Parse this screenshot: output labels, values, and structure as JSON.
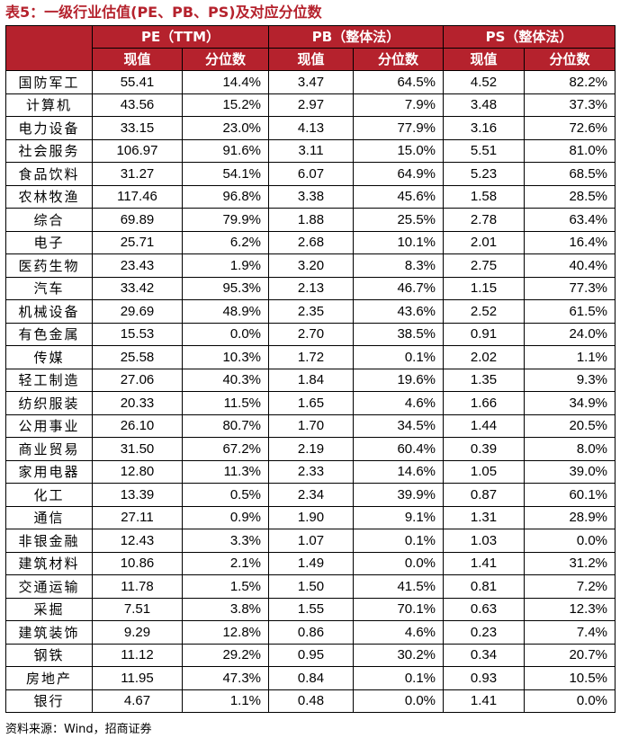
{
  "title": "表5：一级行业估值(PE、PB、PS)及对应分位数",
  "groups": [
    "PE（TTM）",
    "PB（整体法）",
    "PS（整体法）"
  ],
  "subheaders": [
    "现值",
    "分位数",
    "现值",
    "分位数",
    "现值",
    "分位数"
  ],
  "rows": [
    {
      "name": "国防军工",
      "pe": "55.41",
      "pe_pct": "14.4%",
      "pb": "3.47",
      "pb_pct": "64.5%",
      "ps": "4.52",
      "ps_pct": "82.2%"
    },
    {
      "name": "计算机",
      "pe": "43.56",
      "pe_pct": "15.2%",
      "pb": "2.97",
      "pb_pct": "7.9%",
      "ps": "3.48",
      "ps_pct": "37.3%"
    },
    {
      "name": "电力设备",
      "pe": "33.15",
      "pe_pct": "23.0%",
      "pb": "4.13",
      "pb_pct": "77.9%",
      "ps": "3.16",
      "ps_pct": "72.6%"
    },
    {
      "name": "社会服务",
      "pe": "106.97",
      "pe_pct": "91.6%",
      "pb": "3.11",
      "pb_pct": "15.0%",
      "ps": "5.51",
      "ps_pct": "81.0%"
    },
    {
      "name": "食品饮料",
      "pe": "31.27",
      "pe_pct": "54.1%",
      "pb": "6.07",
      "pb_pct": "64.9%",
      "ps": "5.23",
      "ps_pct": "68.5%"
    },
    {
      "name": "农林牧渔",
      "pe": "117.46",
      "pe_pct": "96.8%",
      "pb": "3.38",
      "pb_pct": "45.6%",
      "ps": "1.58",
      "ps_pct": "28.5%"
    },
    {
      "name": "综合",
      "pe": "69.89",
      "pe_pct": "79.9%",
      "pb": "1.88",
      "pb_pct": "25.5%",
      "ps": "2.78",
      "ps_pct": "63.4%"
    },
    {
      "name": "电子",
      "pe": "25.71",
      "pe_pct": "6.2%",
      "pb": "2.68",
      "pb_pct": "10.1%",
      "ps": "2.01",
      "ps_pct": "16.4%"
    },
    {
      "name": "医药生物",
      "pe": "23.43",
      "pe_pct": "1.9%",
      "pb": "3.20",
      "pb_pct": "8.3%",
      "ps": "2.75",
      "ps_pct": "40.4%"
    },
    {
      "name": "汽车",
      "pe": "33.42",
      "pe_pct": "95.3%",
      "pb": "2.13",
      "pb_pct": "46.7%",
      "ps": "1.15",
      "ps_pct": "77.3%"
    },
    {
      "name": "机械设备",
      "pe": "29.69",
      "pe_pct": "48.9%",
      "pb": "2.35",
      "pb_pct": "43.6%",
      "ps": "2.52",
      "ps_pct": "61.5%"
    },
    {
      "name": "有色金属",
      "pe": "15.53",
      "pe_pct": "0.0%",
      "pb": "2.70",
      "pb_pct": "38.5%",
      "ps": "0.91",
      "ps_pct": "24.0%"
    },
    {
      "name": "传媒",
      "pe": "25.58",
      "pe_pct": "10.3%",
      "pb": "1.72",
      "pb_pct": "0.1%",
      "ps": "2.02",
      "ps_pct": "1.1%"
    },
    {
      "name": "轻工制造",
      "pe": "27.06",
      "pe_pct": "40.3%",
      "pb": "1.84",
      "pb_pct": "19.6%",
      "ps": "1.35",
      "ps_pct": "9.3%"
    },
    {
      "name": "纺织服装",
      "pe": "20.33",
      "pe_pct": "11.5%",
      "pb": "1.65",
      "pb_pct": "4.6%",
      "ps": "1.66",
      "ps_pct": "34.9%"
    },
    {
      "name": "公用事业",
      "pe": "26.10",
      "pe_pct": "80.7%",
      "pb": "1.70",
      "pb_pct": "34.5%",
      "ps": "1.44",
      "ps_pct": "20.5%"
    },
    {
      "name": "商业贸易",
      "pe": "31.50",
      "pe_pct": "67.2%",
      "pb": "2.19",
      "pb_pct": "60.4%",
      "ps": "0.39",
      "ps_pct": "8.0%"
    },
    {
      "name": "家用电器",
      "pe": "12.80",
      "pe_pct": "11.3%",
      "pb": "2.33",
      "pb_pct": "14.6%",
      "ps": "1.05",
      "ps_pct": "39.0%"
    },
    {
      "name": "化工",
      "pe": "13.39",
      "pe_pct": "0.5%",
      "pb": "2.34",
      "pb_pct": "39.9%",
      "ps": "0.87",
      "ps_pct": "60.1%"
    },
    {
      "name": "通信",
      "pe": "27.11",
      "pe_pct": "0.9%",
      "pb": "1.90",
      "pb_pct": "9.1%",
      "ps": "1.31",
      "ps_pct": "28.9%"
    },
    {
      "name": "非银金融",
      "pe": "12.43",
      "pe_pct": "3.3%",
      "pb": "1.07",
      "pb_pct": "0.1%",
      "ps": "1.03",
      "ps_pct": "0.0%"
    },
    {
      "name": "建筑材料",
      "pe": "10.86",
      "pe_pct": "2.1%",
      "pb": "1.49",
      "pb_pct": "0.0%",
      "ps": "1.41",
      "ps_pct": "31.2%"
    },
    {
      "name": "交通运输",
      "pe": "11.78",
      "pe_pct": "1.5%",
      "pb": "1.50",
      "pb_pct": "41.5%",
      "ps": "0.81",
      "ps_pct": "7.2%"
    },
    {
      "name": "采掘",
      "pe": "7.51",
      "pe_pct": "3.8%",
      "pb": "1.55",
      "pb_pct": "70.1%",
      "ps": "0.63",
      "ps_pct": "12.3%"
    },
    {
      "name": "建筑装饰",
      "pe": "9.29",
      "pe_pct": "12.8%",
      "pb": "0.86",
      "pb_pct": "4.6%",
      "ps": "0.23",
      "ps_pct": "7.4%"
    },
    {
      "name": "钢铁",
      "pe": "11.12",
      "pe_pct": "29.2%",
      "pb": "0.95",
      "pb_pct": "30.2%",
      "ps": "0.34",
      "ps_pct": "20.7%"
    },
    {
      "name": "房地产",
      "pe": "11.95",
      "pe_pct": "47.3%",
      "pb": "0.84",
      "pb_pct": "0.1%",
      "ps": "0.93",
      "ps_pct": "10.5%"
    },
    {
      "name": "银行",
      "pe": "4.67",
      "pe_pct": "1.1%",
      "pb": "0.48",
      "pb_pct": "0.0%",
      "ps": "1.41",
      "ps_pct": "0.0%"
    }
  ],
  "source": "资料来源：Wind，招商证券",
  "colors": {
    "header_bg": "#b5222d",
    "title": "#b5222d",
    "header_text": "#ffffff"
  }
}
